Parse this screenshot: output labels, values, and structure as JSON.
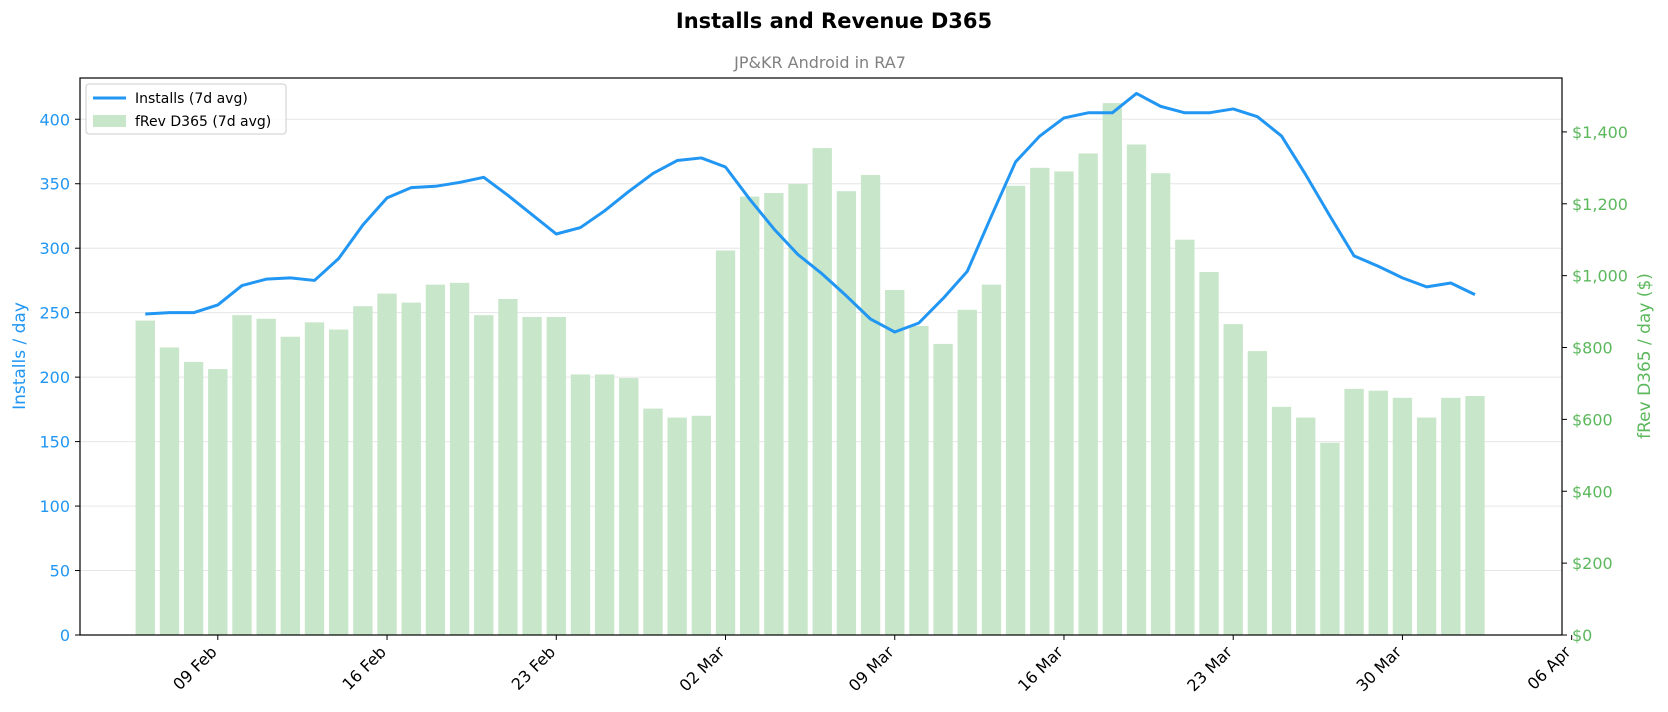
{
  "chart_data": {
    "type": "bar+line",
    "title": "Installs and Revenue D365",
    "subtitle": "JP&KR Android in RA7",
    "ylabel_left": "Installs / day",
    "ylabel_right": "fRev D365 / day ($)",
    "ylim_left": [
      0,
      432
    ],
    "ylim_right": [
      0,
      1550
    ],
    "yticks_left": [
      0,
      50,
      100,
      150,
      200,
      250,
      300,
      350,
      400
    ],
    "yticks_right": [
      0,
      200,
      400,
      600,
      800,
      1000,
      1200,
      1400
    ],
    "yticks_right_labels": [
      "$0",
      "$200",
      "$400",
      "$600",
      "$800",
      "$1,000",
      "$1,200",
      "$1,400"
    ],
    "x_start_date": "2025-02-06",
    "x_range_days": [
      -2.7,
      58.6
    ],
    "x_ticks": [
      {
        "day": 3,
        "label": "09 Feb"
      },
      {
        "day": 10,
        "label": "16 Feb"
      },
      {
        "day": 17,
        "label": "23 Feb"
      },
      {
        "day": 24,
        "label": "02 Mar"
      },
      {
        "day": 31,
        "label": "09 Mar"
      },
      {
        "day": 38,
        "label": "16 Mar"
      },
      {
        "day": 45,
        "label": "23 Mar"
      },
      {
        "day": 52,
        "label": "30 Mar"
      },
      {
        "day": 59,
        "label": "06 Apr"
      }
    ],
    "grid": true,
    "legend_position": "top-left",
    "colors": {
      "installs": "#2196f3",
      "revenue_bar": "#c8e6c9",
      "right_axis": "#5cb85c",
      "grid": "#e6e6e6"
    },
    "series": [
      {
        "name": "Installs (7d avg)",
        "type": "line",
        "axis": "left",
        "values": [
          249,
          250,
          250,
          256,
          271,
          276,
          277,
          275,
          292,
          318,
          339,
          347,
          348,
          351,
          355,
          341,
          326,
          311,
          316,
          329,
          344,
          358,
          368,
          370,
          363,
          338,
          315,
          295,
          280,
          263,
          245,
          235,
          242,
          261,
          282,
          325,
          367,
          387,
          401,
          405,
          405,
          420,
          410,
          405,
          405,
          408,
          402,
          387,
          357,
          325,
          294,
          286,
          277,
          270,
          273,
          264
        ]
      },
      {
        "name": "fRev D365 (7d avg)",
        "type": "bar",
        "axis": "right",
        "values": [
          875,
          800,
          760,
          740,
          890,
          880,
          830,
          870,
          850,
          915,
          950,
          925,
          975,
          980,
          890,
          935,
          885,
          885,
          725,
          725,
          715,
          630,
          605,
          610,
          1070,
          1220,
          1230,
          1255,
          1355,
          1235,
          1280,
          960,
          860,
          810,
          905,
          975,
          1250,
          1300,
          1290,
          1340,
          1480,
          1365,
          1285,
          1100,
          1010,
          865,
          790,
          635,
          605,
          535,
          685,
          680,
          660,
          605,
          660,
          665
        ]
      }
    ]
  }
}
